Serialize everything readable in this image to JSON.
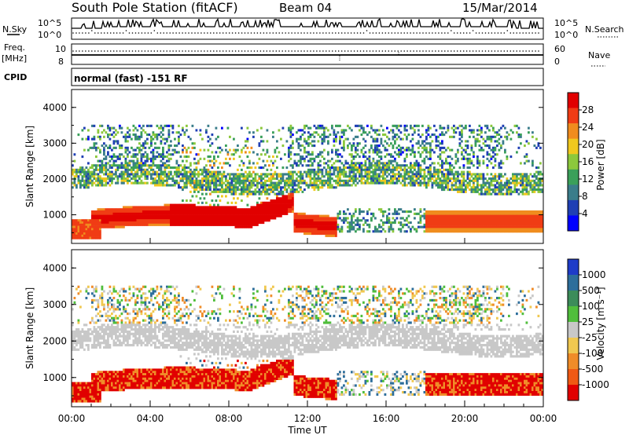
{
  "header": {
    "title": "South Pole Station (fitACF)",
    "beam": "Beam 04",
    "date": "15/Mar/2014"
  },
  "params": {
    "nsky_label": "N.Sky",
    "nsearch_label": "N.Search",
    "nsky_ticks": [
      "10^5",
      "10^0"
    ],
    "nsearch_ticks": [
      "10^5",
      "10^0"
    ],
    "freq_label_1": "Freq.",
    "freq_label_2": "[MHz]",
    "freq_ticks": [
      "10",
      "8"
    ],
    "nave_label": "Nave",
    "nave_ticks": [
      "60",
      "0"
    ],
    "cpid_label": "CPID",
    "cpid_value": "normal (fast) -151 RF"
  },
  "chart_data": [
    {
      "type": "heatmap",
      "name": "power",
      "ylabel": "Slant Range [km]",
      "yticks": [
        "4000",
        "3000",
        "2000",
        "1000"
      ],
      "ylim": [
        200,
        4500
      ],
      "xlim": [
        "00:00",
        "24:00"
      ],
      "colorbar_label": "Power [dB]",
      "colorbar_ticks": [
        "28",
        "24",
        "20",
        "16",
        "12",
        "8",
        "4"
      ],
      "colors": [
        "#0000ff",
        "#1f3fb4",
        "#3a7d8a",
        "#3aa05a",
        "#8cc83c",
        "#f0c81e",
        "#f08c1e",
        "#f03c14",
        "#e10000"
      ]
    },
    {
      "type": "heatmap",
      "name": "velocity",
      "ylabel": "Slant Range [km]",
      "yticks": [
        "4000",
        "3000",
        "2000",
        "1000"
      ],
      "ylim": [
        200,
        4500
      ],
      "xlabel": "Time UT",
      "xticks": [
        "00:00",
        "04:00",
        "08:00",
        "12:00",
        "16:00",
        "20:00",
        "00:00"
      ],
      "xlim": [
        "00:00",
        "24:00"
      ],
      "colorbar_label": "Velocity [m s⁻¹]",
      "colorbar_ticks": [
        "1000",
        "500",
        "100",
        "25",
        "-25",
        "-100",
        "-500",
        "-1000"
      ],
      "colors": [
        "#1e3cc8",
        "#2d6e9b",
        "#3c8c5a",
        "#50be3c",
        "#c8c8c8",
        "#f0c850",
        "#f08c28",
        "#f05a14",
        "#e10000"
      ]
    }
  ]
}
